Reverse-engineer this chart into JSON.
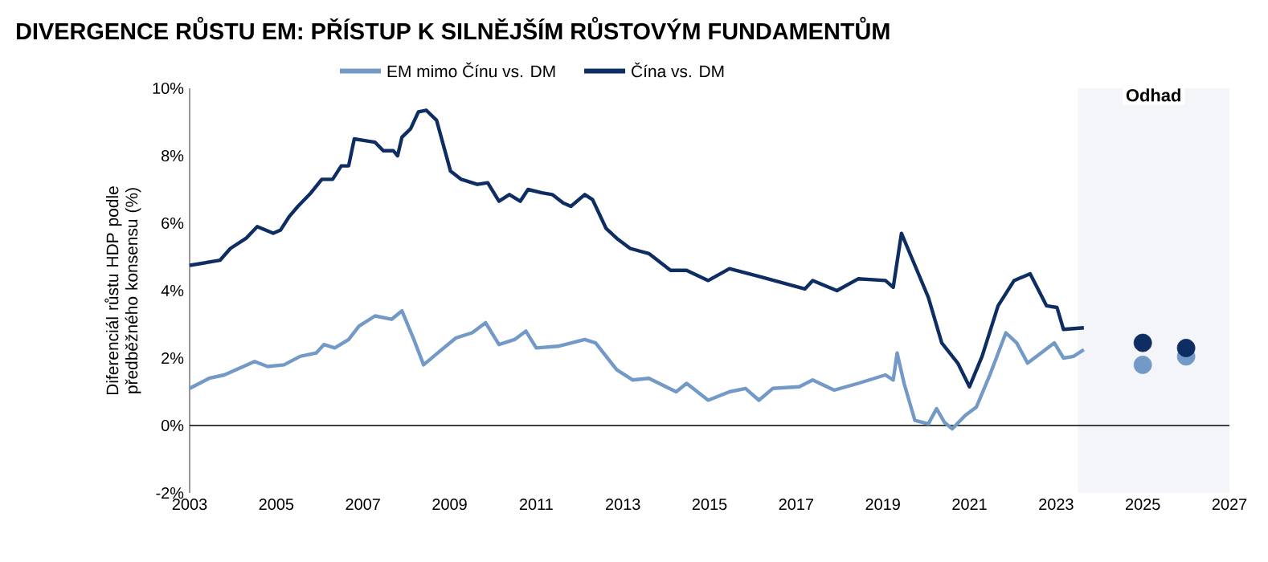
{
  "chart_data": {
    "type": "line",
    "title": "DIVERGENCE RŮSTU EM: PŘÍSTUP K SILNĚJŠÍM RŮSTOVÝM FUNDAMENTŮM",
    "ylabel": "Diferenciál růstu HDP podle předběžného konsensu (%)",
    "xlim": [
      2003,
      2027
    ],
    "ylim": [
      -2,
      10
    ],
    "xticks": [
      2003,
      2005,
      2007,
      2009,
      2011,
      2013,
      2015,
      2017,
      2019,
      2021,
      2023,
      2025,
      2027
    ],
    "yticks": [
      {
        "value": -2,
        "label": "-2%"
      },
      {
        "value": 0,
        "label": "0%"
      },
      {
        "value": 2,
        "label": "2%"
      },
      {
        "value": 4,
        "label": "4%"
      },
      {
        "value": 6,
        "label": "6%"
      },
      {
        "value": 8,
        "label": "8%"
      },
      {
        "value": 10,
        "label": "10%"
      }
    ],
    "grid": false,
    "legend": "top",
    "marker": "none",
    "line_style": "solid",
    "ref_lines": [
      {
        "axis": "y",
        "value": 0,
        "color": "#000000"
      }
    ],
    "bands": [
      {
        "axis": "x",
        "from": 2023.5,
        "to": 2027,
        "label": "Odhad",
        "color": "#f4f5f8"
      }
    ],
    "series": [
      {
        "name": "EM mimo Čínu vs. DM",
        "color": "#7399c6",
        "x": [
          2003.0,
          2003.45,
          2003.8,
          2004.5,
          2004.8,
          2005.18,
          2005.55,
          2005.92,
          2006.1,
          2006.35,
          2006.67,
          2006.91,
          2007.28,
          2007.66,
          2007.9,
          2008.16,
          2008.4,
          2008.77,
          2009.15,
          2009.52,
          2009.83,
          2010.14,
          2010.5,
          2010.76,
          2011.0,
          2011.5,
          2012.12,
          2012.37,
          2012.86,
          2013.23,
          2013.6,
          2014.23,
          2014.47,
          2014.97,
          2015.46,
          2015.83,
          2016.14,
          2016.46,
          2017.07,
          2017.38,
          2017.88,
          2018.43,
          2019.06,
          2019.24,
          2019.33,
          2019.49,
          2019.74,
          2020.05,
          2020.24,
          2020.42,
          2020.6,
          2020.9,
          2021.16,
          2021.47,
          2021.84,
          2022.09,
          2022.34,
          2022.65,
          2022.96,
          2023.17,
          2023.4,
          2023.64
        ],
        "values": [
          1.1,
          1.4,
          1.5,
          1.9,
          1.75,
          1.8,
          2.05,
          2.15,
          2.4,
          2.3,
          2.55,
          2.95,
          3.25,
          3.15,
          3.4,
          2.6,
          1.8,
          2.2,
          2.6,
          2.75,
          3.05,
          2.4,
          2.55,
          2.8,
          2.3,
          2.35,
          2.55,
          2.45,
          1.65,
          1.35,
          1.4,
          1.0,
          1.25,
          0.75,
          1.0,
          1.1,
          0.75,
          1.1,
          1.15,
          1.35,
          1.05,
          1.25,
          1.5,
          1.35,
          2.15,
          1.25,
          0.15,
          0.05,
          0.5,
          0.1,
          -0.1,
          0.3,
          0.55,
          1.5,
          2.75,
          2.45,
          1.85,
          2.15,
          2.45,
          2.0,
          2.05,
          2.25
        ]
      },
      {
        "name": "Čína vs. DM",
        "color": "#0d2d63",
        "x": [
          2003.0,
          2003.7,
          2003.94,
          2004.3,
          2004.56,
          2004.93,
          2005.1,
          2005.3,
          2005.5,
          2005.8,
          2006.05,
          2006.3,
          2006.5,
          2006.67,
          2006.8,
          2007.04,
          2007.28,
          2007.47,
          2007.7,
          2007.8,
          2007.9,
          2008.1,
          2008.28,
          2008.46,
          2008.7,
          2009.02,
          2009.27,
          2009.64,
          2009.88,
          2010.14,
          2010.38,
          2010.63,
          2010.81,
          2011.13,
          2011.37,
          2011.62,
          2011.8,
          2012.12,
          2012.3,
          2012.61,
          2012.86,
          2013.17,
          2013.6,
          2014.1,
          2014.47,
          2014.97,
          2015.46,
          2016.2,
          2017.2,
          2017.38,
          2017.94,
          2018.43,
          2019.06,
          2019.24,
          2019.43,
          2019.74,
          2020.05,
          2020.36,
          2020.73,
          2021.0,
          2021.29,
          2021.66,
          2022.03,
          2022.4,
          2022.78,
          2023.02,
          2023.17,
          2023.64
        ],
        "values": [
          4.75,
          4.9,
          5.25,
          5.55,
          5.9,
          5.7,
          5.8,
          6.2,
          6.5,
          6.9,
          7.3,
          7.3,
          7.7,
          7.7,
          8.5,
          8.45,
          8.4,
          8.15,
          8.15,
          8.0,
          8.55,
          8.8,
          9.3,
          9.35,
          9.05,
          7.55,
          7.3,
          7.15,
          7.2,
          6.65,
          6.85,
          6.65,
          7.0,
          6.9,
          6.85,
          6.6,
          6.5,
          6.85,
          6.7,
          5.85,
          5.55,
          5.25,
          5.1,
          4.6,
          4.6,
          4.3,
          4.65,
          4.4,
          4.05,
          4.3,
          4.0,
          4.35,
          4.3,
          4.1,
          5.7,
          4.75,
          3.8,
          2.45,
          1.85,
          1.15,
          2.05,
          3.55,
          4.3,
          4.5,
          3.55,
          3.5,
          2.85,
          2.9
        ]
      },
      {
        "type": "scatter",
        "marker": "circle",
        "color": "#7399c6",
        "x": [
          2025,
          2026
        ],
        "values": [
          1.8,
          2.05
        ]
      },
      {
        "type": "scatter",
        "marker": "circle",
        "color": "#0d2d63",
        "x": [
          2025,
          2026
        ],
        "values": [
          2.45,
          2.3
        ]
      }
    ]
  }
}
